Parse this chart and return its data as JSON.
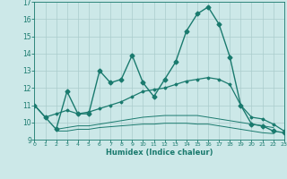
{
  "xlabel": "Humidex (Indice chaleur)",
  "x": [
    0,
    1,
    2,
    3,
    4,
    5,
    6,
    7,
    8,
    9,
    10,
    11,
    12,
    13,
    14,
    15,
    16,
    17,
    18,
    19,
    20,
    21,
    22,
    23
  ],
  "line1": [
    11.0,
    10.3,
    9.6,
    11.8,
    10.5,
    10.5,
    13.0,
    12.3,
    12.5,
    13.9,
    12.3,
    11.5,
    12.5,
    13.5,
    15.3,
    16.3,
    16.7,
    15.7,
    13.8,
    11.0,
    9.9,
    9.8,
    9.5,
    9.4
  ],
  "line2": [
    11.0,
    10.3,
    10.5,
    10.7,
    10.5,
    10.6,
    10.8,
    11.0,
    11.2,
    11.5,
    11.8,
    11.9,
    12.0,
    12.2,
    12.4,
    12.5,
    12.6,
    12.5,
    12.2,
    11.0,
    10.3,
    10.2,
    9.9,
    9.5
  ],
  "line3": [
    null,
    null,
    9.6,
    9.7,
    9.8,
    9.8,
    9.9,
    10.0,
    10.1,
    10.2,
    10.3,
    10.35,
    10.4,
    10.4,
    10.4,
    10.4,
    10.3,
    10.2,
    10.1,
    10.0,
    9.9,
    9.8,
    9.7,
    null
  ],
  "line4": [
    null,
    null,
    9.5,
    9.5,
    9.6,
    9.6,
    9.7,
    9.75,
    9.8,
    9.85,
    9.9,
    9.9,
    9.95,
    9.95,
    9.95,
    9.9,
    9.9,
    9.8,
    9.7,
    9.6,
    9.5,
    9.4,
    9.35,
    null
  ],
  "line_color": "#1a7a6e",
  "bg_color": "#cce8e8",
  "grid_color": "#aacccc",
  "ylim": [
    9,
    17
  ],
  "xlim": [
    0,
    23
  ],
  "yticks": [
    9,
    10,
    11,
    12,
    13,
    14,
    15,
    16,
    17
  ],
  "xticks": [
    0,
    1,
    2,
    3,
    4,
    5,
    6,
    7,
    8,
    9,
    10,
    11,
    12,
    13,
    14,
    15,
    16,
    17,
    18,
    19,
    20,
    21,
    22,
    23
  ],
  "markersize": 2.5,
  "linewidth": 1.0
}
